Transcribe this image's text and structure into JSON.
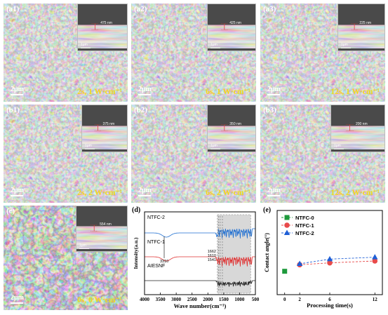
{
  "sem_panels": [
    {
      "label": "(a1)",
      "condition": "2s, 1 W·cm⁻¹",
      "scale": "2μm",
      "inset_scale": "1μm",
      "inset_thickness": "475 nm"
    },
    {
      "label": "(a2)",
      "condition": "6s, 1 W·cm⁻¹",
      "scale": "2μm",
      "inset_scale": "1μm",
      "inset_thickness": "425 nm"
    },
    {
      "label": "(a3)",
      "condition": "12s, 1 W·cm⁻¹",
      "scale": "2μm",
      "inset_scale": "1μm",
      "inset_thickness": "225 nm"
    },
    {
      "label": "(b1)",
      "condition": "2s, 2 W·cm⁻¹",
      "scale": "2μm",
      "inset_scale": "1μm",
      "inset_thickness": "375 nm"
    },
    {
      "label": "(b2)",
      "condition": "6s, 2 W·cm⁻¹",
      "scale": "2μm",
      "inset_scale": "1μm",
      "inset_thickness": "350 nm"
    },
    {
      "label": "(b3)",
      "condition": "12s, 2 W·cm⁻¹",
      "scale": "2μm",
      "inset_scale": "1μm",
      "inset_thickness": "200 nm"
    },
    {
      "label": "(c)",
      "condition": "0s, 0 W·cm⁻¹",
      "scale": "2μm",
      "inset_scale": "1μm",
      "inset_thickness": "554 nm"
    }
  ],
  "chart_data": [
    {
      "type": "line",
      "panel_label": "(d)",
      "xlabel": "Wave number(cm⁻¹)",
      "ylabel": "Intensity(a.u.)",
      "xlim": [
        4000,
        500
      ],
      "x_ticks": [
        4000,
        3500,
        3000,
        2500,
        2000,
        1500,
        1000,
        500
      ],
      "series": [
        {
          "name": "NTFC-2",
          "color": "#1f6fd1"
        },
        {
          "name": "NTFC-1",
          "color": "#e03030"
        },
        {
          "name": "AIESNF",
          "color": "#222222"
        }
      ],
      "annotations": [
        "3310",
        "1662",
        "1610",
        "1541"
      ]
    },
    {
      "type": "scatter",
      "panel_label": "(e)",
      "xlabel": "Processing time(s)",
      "ylabel": "Contact angle(°)",
      "xlim": [
        -1,
        13
      ],
      "ylim": [
        0,
        90
      ],
      "x_ticks": [
        0,
        2,
        6,
        12
      ],
      "legend_position": "top-left",
      "series": [
        {
          "name": "NTFC-0",
          "color": "#1e9a3c",
          "marker": "square",
          "x": [
            0
          ],
          "y": [
            25
          ],
          "err": [
            2
          ]
        },
        {
          "name": "NTFC-1",
          "color": "#e84a4a",
          "marker": "circle",
          "x": [
            2,
            6,
            12
          ],
          "y": [
            32,
            34,
            36
          ],
          "err": [
            2,
            2,
            2
          ]
        },
        {
          "name": "NTFC-2",
          "color": "#1f5fd6",
          "marker": "triangle",
          "x": [
            2,
            6,
            12
          ],
          "y": [
            33,
            38,
            40
          ],
          "err": [
            2,
            2,
            2
          ]
        }
      ]
    }
  ]
}
